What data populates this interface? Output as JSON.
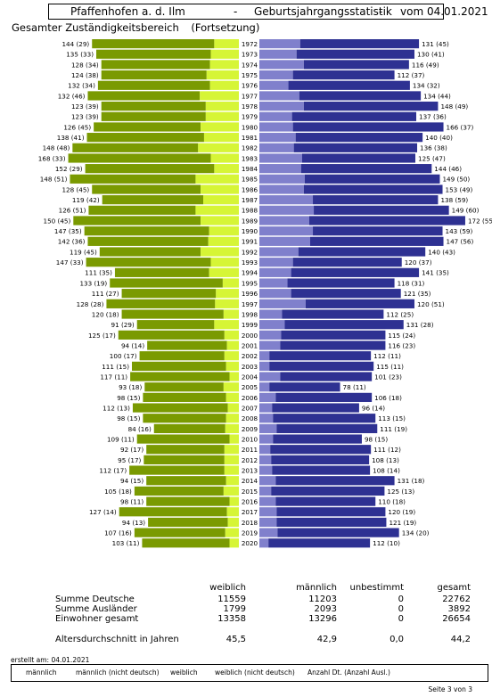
{
  "header": {
    "place": "Pfaffenhofen a. d. Ilm",
    "sep1": "-",
    "stat": "Geburtsjahrgangsstatistik",
    "sep2": "-",
    "date": "vom 04.01.2021"
  },
  "subtitle": {
    "scope": "Gesamter Zuständigkeitsbereich",
    "note": "(Fortsetzung)"
  },
  "colors": {
    "weiblich": "#7a9a01",
    "weiblich_nicht_deutsch": "#d6f536",
    "maennlich": "#2e3192",
    "maennlich_nicht_deutsch": "#8080cc"
  },
  "chart_data": {
    "type": "bar",
    "orientation": "horizontal-pyramid",
    "categories": [
      "1972",
      "1973",
      "1974",
      "1975",
      "1976",
      "1977",
      "1978",
      "1979",
      "1980",
      "1981",
      "1982",
      "1983",
      "1984",
      "1985",
      "1986",
      "1987",
      "1988",
      "1989",
      "1990",
      "1991",
      "1992",
      "1993",
      "1994",
      "1995",
      "1996",
      "1997",
      "1998",
      "1999",
      "2000",
      "2001",
      "2002",
      "2003",
      "2004",
      "2005",
      "2006",
      "2007",
      "2008",
      "2009",
      "2010",
      "2011",
      "2012",
      "2013",
      "2014",
      "2015",
      "2016",
      "2017",
      "2018",
      "2019",
      "2020"
    ],
    "series": [
      {
        "name": "weiblich",
        "values": [
          144,
          135,
          128,
          124,
          132,
          132,
          123,
          123,
          126,
          138,
          148,
          168,
          152,
          148,
          128,
          119,
          126,
          150,
          147,
          142,
          119,
          147,
          111,
          133,
          111,
          128,
          120,
          91,
          125,
          94,
          100,
          111,
          117,
          93,
          98,
          112,
          98,
          84,
          109,
          92,
          95,
          112,
          94,
          105,
          98,
          127,
          94,
          107,
          103
        ]
      },
      {
        "name": "weiblich (nicht deutsch)",
        "values": [
          29,
          33,
          34,
          38,
          34,
          46,
          39,
          39,
          45,
          41,
          48,
          33,
          29,
          51,
          45,
          42,
          51,
          45,
          35,
          36,
          45,
          33,
          35,
          19,
          27,
          28,
          18,
          29,
          17,
          14,
          17,
          15,
          11,
          18,
          15,
          13,
          15,
          16,
          11,
          17,
          17,
          17,
          15,
          18,
          11,
          14,
          13,
          16,
          11
        ]
      },
      {
        "name": "männlich",
        "values": [
          131,
          130,
          116,
          112,
          134,
          134,
          148,
          137,
          166,
          140,
          136,
          125,
          144,
          149,
          153,
          138,
          149,
          172,
          143,
          147,
          140,
          120,
          141,
          118,
          121,
          120,
          112,
          131,
          115,
          116,
          112,
          115,
          101,
          78,
          106,
          96,
          113,
          111,
          98,
          111,
          108,
          108,
          131,
          125,
          110,
          120,
          121,
          134,
          112
        ]
      },
      {
        "name": "männlich (nicht deutsch)",
        "values": [
          45,
          41,
          49,
          37,
          32,
          44,
          49,
          36,
          37,
          40,
          38,
          47,
          46,
          50,
          49,
          59,
          60,
          55,
          59,
          56,
          43,
          37,
          35,
          31,
          35,
          51,
          25,
          28,
          24,
          23,
          11,
          11,
          23,
          11,
          18,
          14,
          15,
          19,
          15,
          12,
          13,
          14,
          18,
          13,
          18,
          19,
          19,
          20,
          10
        ]
      }
    ],
    "labels_weiblich": [
      "144 (29)",
      "135 (33)",
      "128 (34)",
      "124 (38)",
      "132 (34)",
      "132 (46)",
      "123 (39)",
      "123 (39)",
      "126 (45)",
      "138 (41)",
      "148 (48)",
      "168 (33)",
      "152 (29)",
      "148 (51)",
      "128 (45)",
      "119 (42)",
      "126 (51)",
      "150 (45)",
      "147 (35)",
      "142 (36)",
      "119 (45)",
      "147 (33)",
      "111 (35)",
      "133 (19)",
      "111 (27)",
      "128 (28)",
      "120 (18)",
      "91 (29)",
      "125 (17)",
      "94 (14)",
      "100 (17)",
      "111 (15)",
      "117 (11)",
      "93 (18)",
      "98 (15)",
      "112 (13)",
      "98 (15)",
      "84 (16)",
      "109 (11)",
      "92 (17)",
      "95 (17)",
      "112 (17)",
      "94 (15)",
      "105 (18)",
      "98 (11)",
      "127 (14)",
      "94 (13)",
      "107 (16)",
      "103 (11)"
    ],
    "labels_maennlich": [
      "131 (45)",
      "130 (41)",
      "116 (49)",
      "112 (37)",
      "134 (32)",
      "134 (44)",
      "148 (49)",
      "137 (36)",
      "166 (37)",
      "140 (40)",
      "136 (38)",
      "125 (47)",
      "144 (46)",
      "149 (50)",
      "153 (49)",
      "138 (59)",
      "149 (60)",
      "172 (55)",
      "143 (59)",
      "147 (56)",
      "140 (43)",
      "120 (37)",
      "141 (35)",
      "118 (31)",
      "121 (35)",
      "120 (51)",
      "112 (25)",
      "131 (28)",
      "115 (24)",
      "116 (23)",
      "112 (11)",
      "115 (11)",
      "101 (23)",
      "78 (11)",
      "106 (18)",
      "96 (14)",
      "113 (15)",
      "111 (19)",
      "98 (15)",
      "111 (12)",
      "108 (13)",
      "108 (14)",
      "131 (18)",
      "125 (13)",
      "110 (18)",
      "120 (19)",
      "121 (19)",
      "134 (20)",
      "112 (10)"
    ]
  },
  "summary": {
    "headers": {
      "weiblich": "weiblich",
      "maennlich": "männlich",
      "unbestimmt": "unbestimmt",
      "gesamt": "gesamt"
    },
    "rows": [
      {
        "label": "Summe Deutsche",
        "weiblich": "11559",
        "maennlich": "11203",
        "unbestimmt": "0",
        "gesamt": "22762"
      },
      {
        "label": "Summe Ausländer",
        "weiblich": "1799",
        "maennlich": "2093",
        "unbestimmt": "0",
        "gesamt": "3892"
      },
      {
        "label": "Einwohner gesamt",
        "weiblich": "13358",
        "maennlich": "13296",
        "unbestimmt": "0",
        "gesamt": "26654"
      },
      {
        "label": "Altersdurchschnitt in Jahren",
        "weiblich": "45,5",
        "maennlich": "42,9",
        "unbestimmt": "0,0",
        "gesamt": "44,2"
      }
    ]
  },
  "created": "erstellt am: 04.01.2021",
  "legend": {
    "maennlich": "männlich",
    "maennlich_nd": "männlich (nicht deutsch)",
    "weiblich": "weiblich",
    "weiblich_nd": "weiblich (nicht deutsch)",
    "anzahl": "Anzahl Dt. (Anzahl Ausl.)"
  },
  "footer": {
    "page": "Seite 3 von  3"
  }
}
